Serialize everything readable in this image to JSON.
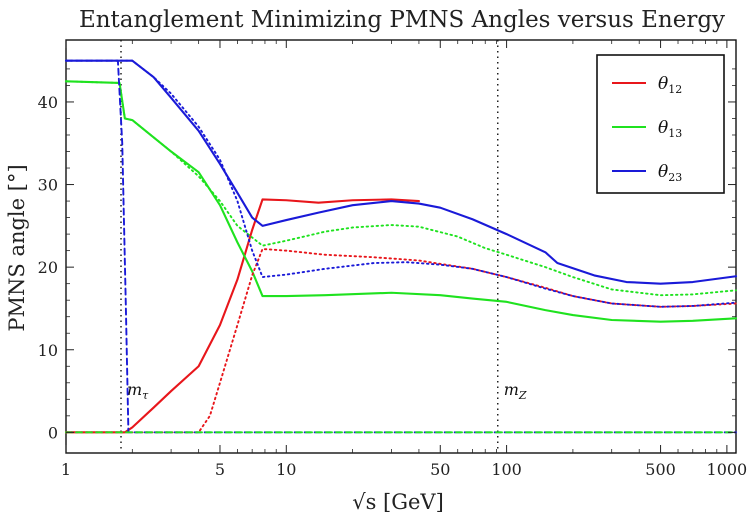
{
  "chart_data": {
    "type": "line",
    "title": "Entanglement Minimizing PMNS Angles versus Energy",
    "xlabel": "√s [GeV]",
    "ylabel": "PMNS angle [°]",
    "x_scale": "log",
    "xlim": [
      1,
      1100
    ],
    "ylim": [
      -2.5,
      47.5
    ],
    "grid": false,
    "legend_position": "top-right",
    "x_ticks": [
      {
        "value": 1,
        "label": "1"
      },
      {
        "value": 5,
        "label": "5"
      },
      {
        "value": 10,
        "label": "10"
      },
      {
        "value": 50,
        "label": "50"
      },
      {
        "value": 100,
        "label": "100"
      },
      {
        "value": 500,
        "label": "500"
      },
      {
        "value": 1000,
        "label": "1000"
      }
    ],
    "x_minor_ticks": [
      2,
      3,
      4,
      6,
      7,
      8,
      9,
      20,
      30,
      40,
      60,
      70,
      80,
      90,
      200,
      300,
      400,
      600,
      700,
      800,
      900
    ],
    "y_ticks": [
      {
        "value": 0,
        "label": "0"
      },
      {
        "value": 10,
        "label": "10"
      },
      {
        "value": 20,
        "label": "20"
      },
      {
        "value": 30,
        "label": "30"
      },
      {
        "value": 40,
        "label": "40"
      }
    ],
    "annotations": [
      {
        "label": "m",
        "sub": "τ",
        "x": 1.777,
        "label_y": 4.5
      },
      {
        "label": "m",
        "sub": "Z",
        "x": 91.19,
        "label_y": 4.5
      }
    ],
    "series": [
      {
        "name": "θ",
        "sub": "12",
        "color": "#e8161b",
        "style": "solid",
        "points": [
          [
            1,
            0
          ],
          [
            1.78,
            0
          ],
          [
            1.85,
            0
          ],
          [
            2,
            0.6
          ],
          [
            2.5,
            3
          ],
          [
            3,
            5
          ],
          [
            4,
            8
          ],
          [
            5,
            13
          ],
          [
            6,
            18.5
          ],
          [
            7,
            24.5
          ],
          [
            7.8,
            28.2
          ],
          [
            10,
            28.1
          ],
          [
            14,
            27.8
          ],
          [
            20,
            28.1
          ],
          [
            30,
            28.2
          ],
          [
            40,
            28
          ]
        ]
      },
      {
        "name": "θ",
        "sub": "13",
        "color": "#1fe21f",
        "style": "solid",
        "points": [
          [
            1,
            42.5
          ],
          [
            1.75,
            42.3
          ],
          [
            1.85,
            38
          ],
          [
            2,
            37.8
          ],
          [
            3,
            34
          ],
          [
            4,
            31.5
          ],
          [
            5,
            27.5
          ],
          [
            6,
            23
          ],
          [
            7,
            19.5
          ],
          [
            7.8,
            16.5
          ],
          [
            10,
            16.5
          ],
          [
            15,
            16.6
          ],
          [
            30,
            16.9
          ],
          [
            50,
            16.6
          ],
          [
            70,
            16.2
          ],
          [
            100,
            15.8
          ],
          [
            150,
            14.8
          ],
          [
            200,
            14.2
          ],
          [
            300,
            13.6
          ],
          [
            500,
            13.4
          ],
          [
            700,
            13.5
          ],
          [
            1100,
            13.8
          ]
        ]
      },
      {
        "name": "θ",
        "sub": "23",
        "color": "#1a1ad8",
        "style": "solid",
        "points": [
          [
            1,
            45
          ],
          [
            1.75,
            45
          ],
          [
            2,
            45
          ],
          [
            2.5,
            43
          ],
          [
            3,
            40.5
          ],
          [
            4,
            36.5
          ],
          [
            5,
            32.5
          ],
          [
            6,
            29
          ],
          [
            7,
            26
          ],
          [
            7.8,
            25
          ],
          [
            10,
            25.7
          ],
          [
            14,
            26.6
          ],
          [
            20,
            27.5
          ],
          [
            30,
            28
          ],
          [
            40,
            27.7
          ],
          [
            50,
            27.2
          ],
          [
            70,
            25.8
          ],
          [
            100,
            24
          ],
          [
            150,
            21.8
          ],
          [
            170,
            20.5
          ],
          [
            250,
            19
          ],
          [
            350,
            18.2
          ],
          [
            500,
            18
          ],
          [
            700,
            18.2
          ],
          [
            1100,
            18.9
          ]
        ]
      },
      {
        "name": "",
        "color": "#e8161b",
        "style": "dotted",
        "points": [
          [
            1,
            0
          ],
          [
            4,
            0
          ],
          [
            4.5,
            2
          ],
          [
            5,
            6
          ],
          [
            6,
            13
          ],
          [
            7,
            19
          ],
          [
            7.8,
            22.2
          ],
          [
            10,
            22
          ],
          [
            15,
            21.5
          ],
          [
            25,
            21.2
          ],
          [
            40,
            20.8
          ],
          [
            70,
            19.8
          ],
          [
            100,
            18.8
          ],
          [
            150,
            17.5
          ],
          [
            200,
            16.5
          ],
          [
            300,
            15.6
          ],
          [
            500,
            15.2
          ],
          [
            700,
            15.3
          ],
          [
            1100,
            15.6
          ]
        ]
      },
      {
        "name": "",
        "color": "#1fe21f",
        "style": "dotted",
        "points": [
          [
            1,
            42.5
          ],
          [
            1.75,
            42.3
          ],
          [
            1.85,
            38
          ],
          [
            2,
            37.8
          ],
          [
            3,
            34
          ],
          [
            4,
            31
          ],
          [
            5,
            28
          ],
          [
            6,
            25
          ],
          [
            7.8,
            22.6
          ],
          [
            10,
            23.2
          ],
          [
            15,
            24.3
          ],
          [
            20,
            24.8
          ],
          [
            30,
            25.1
          ],
          [
            40,
            24.9
          ],
          [
            60,
            23.7
          ],
          [
            80,
            22.3
          ],
          [
            100,
            21.5
          ],
          [
            150,
            20
          ],
          [
            200,
            18.8
          ],
          [
            300,
            17.3
          ],
          [
            500,
            16.6
          ],
          [
            700,
            16.7
          ],
          [
            1100,
            17.2
          ]
        ]
      },
      {
        "name": "",
        "color": "#1a1ad8",
        "style": "dotted",
        "points": [
          [
            1,
            45
          ],
          [
            1.75,
            45
          ],
          [
            2,
            45
          ],
          [
            2.5,
            43
          ],
          [
            3,
            41
          ],
          [
            4,
            37
          ],
          [
            5,
            33
          ],
          [
            6,
            28
          ],
          [
            7,
            22
          ],
          [
            7.8,
            18.8
          ],
          [
            10,
            19.1
          ],
          [
            15,
            19.8
          ],
          [
            25,
            20.5
          ],
          [
            35,
            20.6
          ],
          [
            50,
            20.3
          ],
          [
            70,
            19.8
          ],
          [
            100,
            18.8
          ],
          [
            150,
            17.4
          ],
          [
            200,
            16.5
          ],
          [
            300,
            15.6
          ],
          [
            500,
            15.2
          ],
          [
            700,
            15.3
          ],
          [
            1100,
            15.7
          ]
        ]
      },
      {
        "name": "",
        "color": "#1a1ad8",
        "style": "dashed",
        "points": [
          [
            1,
            45
          ],
          [
            1.72,
            45
          ],
          [
            1.8,
            35
          ],
          [
            1.87,
            15
          ],
          [
            1.92,
            0
          ],
          [
            1100,
            0
          ]
        ]
      },
      {
        "name": "",
        "color": "#1fe21f",
        "style": "dashed",
        "points": [
          [
            1,
            0
          ],
          [
            1100,
            0
          ]
        ]
      }
    ]
  }
}
